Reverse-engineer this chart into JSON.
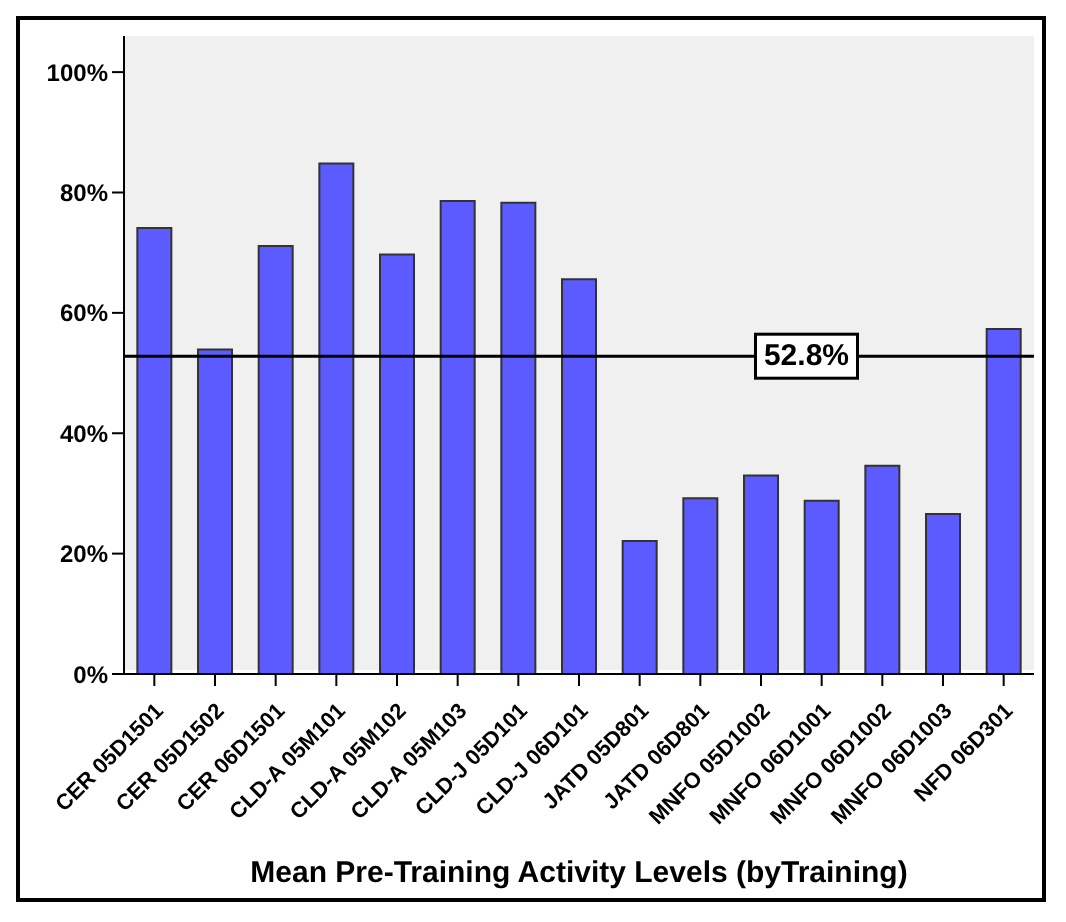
{
  "chart_data": {
    "type": "bar",
    "xlabel": "Mean Pre-Training Activity Levels (byTraining)",
    "categories": [
      "CER 05D1501",
      "CER 05D1502",
      "CER 06D1501",
      "CLD-A 05M101",
      "CLD-A 05M102",
      "CLD-A 05M103",
      "CLD-J 05D101",
      "CLD-J 06D101",
      "JATD 05D801",
      "JATD 06D801",
      "MNFO 05D1002",
      "MNFO 06D1001",
      "MNFO 06D1002",
      "MNFO 06D1003",
      "NFD 06D301"
    ],
    "values": [
      74.1,
      53.9,
      71.1,
      84.8,
      69.7,
      78.6,
      78.3,
      65.6,
      22.1,
      29.2,
      33.0,
      28.8,
      34.6,
      26.6,
      57.3
    ],
    "color": "#5b5bff",
    "ylim": [
      0,
      106
    ],
    "yticks": [
      {
        "value": 0,
        "label": "0%"
      },
      {
        "value": 20,
        "label": "20%"
      },
      {
        "value": 40,
        "label": "40%"
      },
      {
        "value": 60,
        "label": "60%"
      },
      {
        "value": 80,
        "label": "80%"
      },
      {
        "value": 100,
        "label": "100%"
      }
    ],
    "ref_lines": [
      {
        "axis": "y",
        "value": 52.8,
        "label": "52.8%",
        "color": "#000000"
      }
    ],
    "grid": false,
    "legend": false
  }
}
